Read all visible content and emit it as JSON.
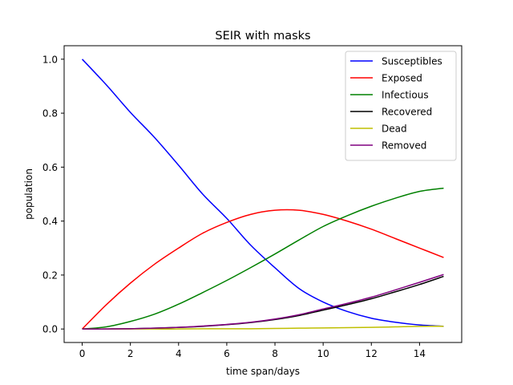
{
  "chart_data": {
    "type": "line",
    "title": "SEIR with masks",
    "xlabel": "time span/days",
    "ylabel": "population",
    "xlim": [
      -0.75,
      15.75
    ],
    "ylim": [
      -0.05,
      1.05
    ],
    "xticks": [
      0,
      2,
      4,
      6,
      8,
      10,
      12,
      14
    ],
    "yticks": [
      0.0,
      0.2,
      0.4,
      0.6,
      0.8,
      1.0
    ],
    "xtick_labels": [
      "0",
      "2",
      "4",
      "6",
      "8",
      "10",
      "12",
      "14"
    ],
    "ytick_labels": [
      "0.0",
      "0.2",
      "0.4",
      "0.6",
      "0.8",
      "1.0"
    ],
    "grid": false,
    "legend_position": "top-right",
    "x": [
      0,
      1,
      2,
      3,
      4,
      5,
      6,
      7,
      8,
      9,
      10,
      11,
      12,
      13,
      14,
      15
    ],
    "series": [
      {
        "name": "Susceptibles",
        "color": "#0000ff",
        "values": [
          1.0,
          0.905,
          0.803,
          0.71,
          0.607,
          0.5,
          0.41,
          0.31,
          0.227,
          0.15,
          0.1,
          0.065,
          0.04,
          0.025,
          0.015,
          0.01
        ]
      },
      {
        "name": "Exposed",
        "color": "#ff0000",
        "values": [
          0.0,
          0.09,
          0.17,
          0.24,
          0.3,
          0.355,
          0.395,
          0.425,
          0.44,
          0.44,
          0.425,
          0.4,
          0.37,
          0.335,
          0.3,
          0.265
        ]
      },
      {
        "name": "Infectious",
        "color": "#008000",
        "values": [
          0.0,
          0.008,
          0.028,
          0.055,
          0.092,
          0.135,
          0.18,
          0.228,
          0.278,
          0.33,
          0.38,
          0.42,
          0.455,
          0.485,
          0.51,
          0.522
        ]
      },
      {
        "name": "Recovered",
        "color": "#000000",
        "values": [
          0.0,
          0.0,
          0.001,
          0.003,
          0.006,
          0.01,
          0.016,
          0.024,
          0.035,
          0.05,
          0.07,
          0.09,
          0.112,
          0.138,
          0.165,
          0.195
        ]
      },
      {
        "name": "Dead",
        "color": "#bfbf00",
        "values": [
          0.0,
          0.0,
          0.0,
          0.0,
          0.0,
          0.001,
          0.001,
          0.001,
          0.002,
          0.003,
          0.004,
          0.005,
          0.006,
          0.008,
          0.01,
          0.01
        ]
      },
      {
        "name": "Removed",
        "color": "#800080",
        "values": [
          0.0,
          0.0,
          0.001,
          0.003,
          0.006,
          0.011,
          0.017,
          0.025,
          0.037,
          0.053,
          0.074,
          0.095,
          0.118,
          0.145,
          0.173,
          0.202
        ]
      }
    ]
  }
}
